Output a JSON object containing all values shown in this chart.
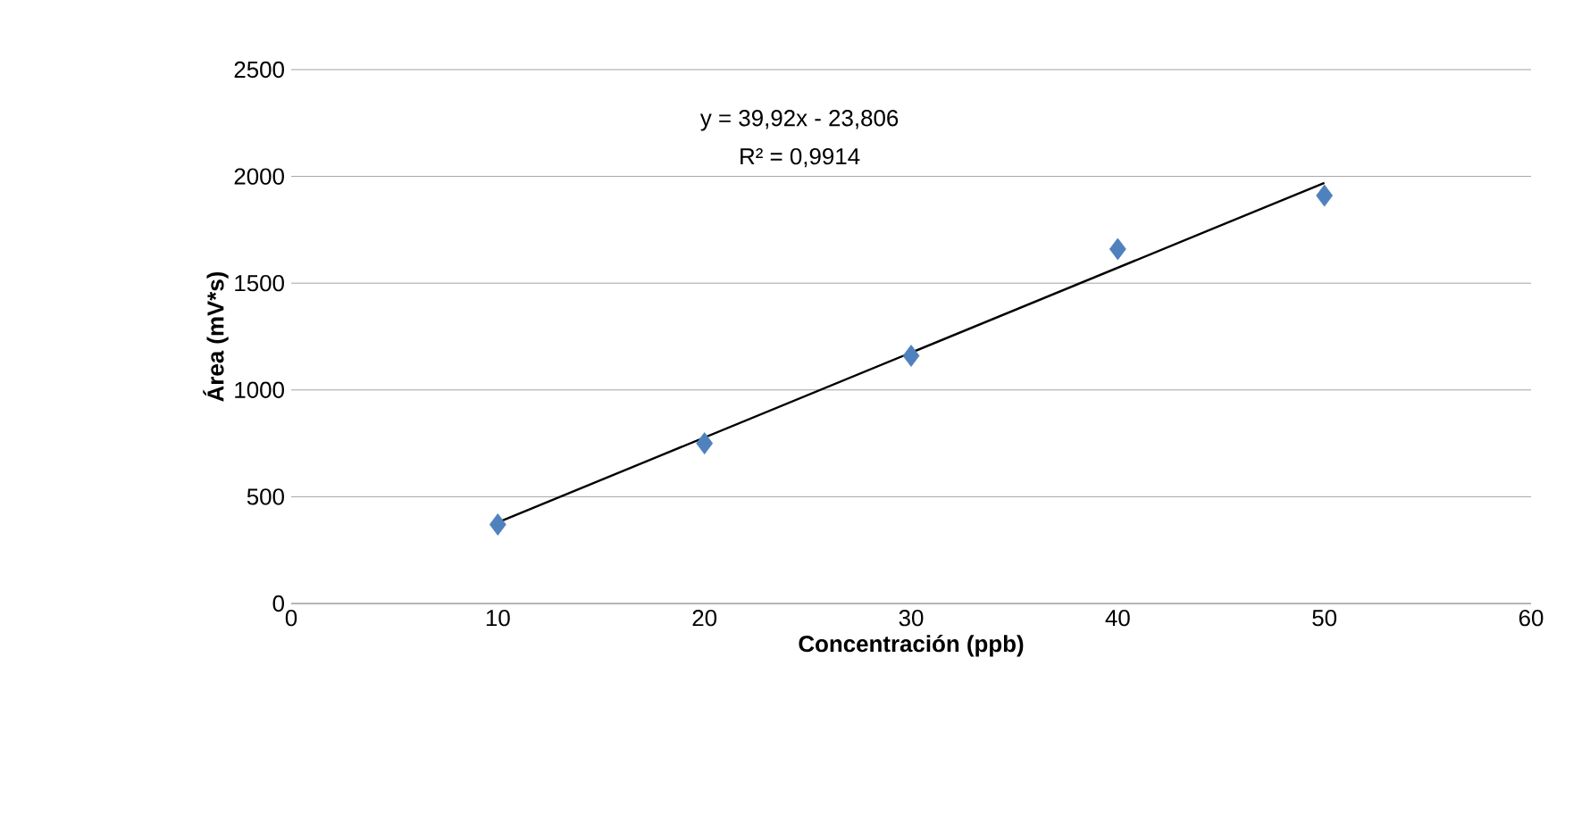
{
  "chart_data": {
    "type": "scatter",
    "xlabel": "Concentración (ppb)",
    "ylabel": "Área (mV*s)",
    "series": [
      {
        "color": "#4f81bd",
        "marker": "diamond",
        "x": [
          10,
          20,
          30,
          40,
          50
        ],
        "values": [
          370,
          750,
          1160,
          1660,
          1910
        ]
      },
      {
        "type": "line",
        "color": "#000000",
        "marker": "none",
        "x": [
          10,
          50
        ],
        "values": [
          380,
          1970
        ]
      }
    ],
    "annotations": [
      "y = 39,92x - 23,806",
      "R² = 0,9914"
    ],
    "xlim": [
      0,
      60
    ],
    "xticks": [
      0,
      10,
      20,
      30,
      40,
      50,
      60
    ],
    "ylim": [
      0,
      2500
    ],
    "yticks": [
      0,
      500,
      1000,
      1500,
      2000,
      2500
    ],
    "grid": "y"
  }
}
